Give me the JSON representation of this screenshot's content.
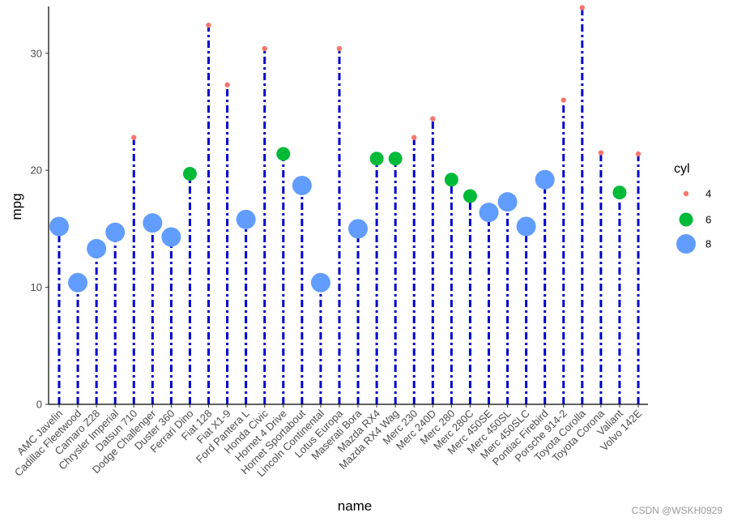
{
  "chart_data": {
    "type": "lollipop",
    "xlabel": "name",
    "ylabel": "mpg",
    "ylim": [
      0,
      34
    ],
    "yticks": [
      0,
      10,
      20,
      30
    ],
    "grid": false,
    "legend": {
      "title": "cyl",
      "position": "right",
      "entries": [
        {
          "label": "4",
          "color": "#F8766D"
        },
        {
          "label": "6",
          "color": "#00BA38"
        },
        {
          "label": "8",
          "color": "#619CFF"
        }
      ]
    },
    "stem_color": "#0000CC",
    "stem_style": "dotdash",
    "points": [
      {
        "name": "AMC Javelin",
        "mpg": 15.2,
        "cyl": 8
      },
      {
        "name": "Cadillac Fleetwood",
        "mpg": 10.4,
        "cyl": 8
      },
      {
        "name": "Camaro Z28",
        "mpg": 13.3,
        "cyl": 8
      },
      {
        "name": "Chrysler Imperial",
        "mpg": 14.7,
        "cyl": 8
      },
      {
        "name": "Datsun 710",
        "mpg": 22.8,
        "cyl": 4
      },
      {
        "name": "Dodge Challenger",
        "mpg": 15.5,
        "cyl": 8
      },
      {
        "name": "Duster 360",
        "mpg": 14.3,
        "cyl": 8
      },
      {
        "name": "Ferrari Dino",
        "mpg": 19.7,
        "cyl": 6
      },
      {
        "name": "Fiat 128",
        "mpg": 32.4,
        "cyl": 4
      },
      {
        "name": "Fiat X1-9",
        "mpg": 27.3,
        "cyl": 4
      },
      {
        "name": "Ford Pantera L",
        "mpg": 15.8,
        "cyl": 8
      },
      {
        "name": "Honda Civic",
        "mpg": 30.4,
        "cyl": 4
      },
      {
        "name": "Hornet 4 Drive",
        "mpg": 21.4,
        "cyl": 6
      },
      {
        "name": "Hornet Sportabout",
        "mpg": 18.7,
        "cyl": 8
      },
      {
        "name": "Lincoln Continental",
        "mpg": 10.4,
        "cyl": 8
      },
      {
        "name": "Lotus Europa",
        "mpg": 30.4,
        "cyl": 4
      },
      {
        "name": "Maserati Bora",
        "mpg": 15.0,
        "cyl": 8
      },
      {
        "name": "Mazda RX4",
        "mpg": 21.0,
        "cyl": 6
      },
      {
        "name": "Mazda RX4 Wag",
        "mpg": 21.0,
        "cyl": 6
      },
      {
        "name": "Merc 230",
        "mpg": 22.8,
        "cyl": 4
      },
      {
        "name": "Merc 240D",
        "mpg": 24.4,
        "cyl": 4
      },
      {
        "name": "Merc 280",
        "mpg": 19.2,
        "cyl": 6
      },
      {
        "name": "Merc 280C",
        "mpg": 17.8,
        "cyl": 6
      },
      {
        "name": "Merc 450SE",
        "mpg": 16.4,
        "cyl": 8
      },
      {
        "name": "Merc 450SL",
        "mpg": 17.3,
        "cyl": 8
      },
      {
        "name": "Merc 450SLC",
        "mpg": 15.2,
        "cyl": 8
      },
      {
        "name": "Pontiac Firebird",
        "mpg": 19.2,
        "cyl": 8
      },
      {
        "name": "Porsche 914-2",
        "mpg": 26.0,
        "cyl": 4
      },
      {
        "name": "Toyota Corolla",
        "mpg": 33.9,
        "cyl": 4
      },
      {
        "name": "Toyota Corona",
        "mpg": 21.5,
        "cyl": 4
      },
      {
        "name": "Valiant",
        "mpg": 18.1,
        "cyl": 6
      },
      {
        "name": "Volvo 142E",
        "mpg": 21.4,
        "cyl": 4
      }
    ]
  },
  "watermark": "CSDN @WSKH0929"
}
